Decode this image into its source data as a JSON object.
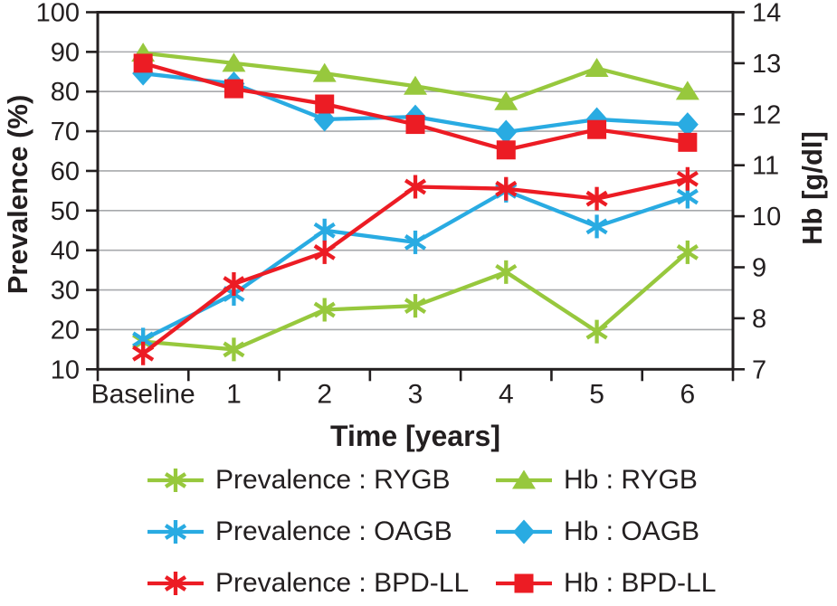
{
  "figure": {
    "background": "#ffffff",
    "text_color": "#231F20",
    "gridline_color": "#A7A9AC",
    "axis_color": "#231F20"
  },
  "chart_data": {
    "type": "line",
    "title": "",
    "x_axis": {
      "label": "Time [years]",
      "categories": [
        "Baseline",
        "1",
        "2",
        "3",
        "4",
        "5",
        "6"
      ]
    },
    "y_axis_left": {
      "label": "Prevalence (%)",
      "min": 10,
      "max": 100,
      "tick_step": 10,
      "ticks": [
        "100",
        "90",
        "80",
        "70",
        "60",
        "50",
        "40",
        "30",
        "20",
        "10"
      ]
    },
    "y_axis_right": {
      "label": "Hb [g/dl]",
      "min": 7,
      "max": 14,
      "tick_step": 1,
      "ticks": [
        "14",
        "13",
        "12",
        "11",
        "10",
        "9",
        "8",
        "7"
      ]
    },
    "grid": {
      "horizontal": true,
      "at_left_values": [
        20,
        30,
        40,
        50,
        60,
        70,
        80,
        90
      ]
    },
    "legend_position": "bottom",
    "series": [
      {
        "name": "Hb : RYGB",
        "axis": "right",
        "color": "#97C83D",
        "marker": "triangle",
        "values": [
          13.2,
          13.0,
          12.8,
          12.55,
          12.25,
          12.9,
          12.45
        ]
      },
      {
        "name": "Hb : OAGB",
        "axis": "right",
        "color": "#29ABE2",
        "marker": "diamond",
        "values": [
          12.8,
          12.6,
          11.9,
          11.95,
          11.65,
          11.9,
          11.8
        ]
      },
      {
        "name": "Hb : BPD-LL",
        "axis": "right",
        "color": "#EC1C24",
        "marker": "square",
        "values": [
          13.0,
          12.5,
          12.2,
          11.8,
          11.3,
          11.7,
          11.45
        ]
      },
      {
        "name": "Prevalence : RYGB",
        "axis": "left",
        "color": "#97C83D",
        "marker": "asterisk",
        "values": [
          17,
          15,
          25,
          26,
          34.5,
          19.5,
          39.5
        ]
      },
      {
        "name": "Prevalence : OAGB",
        "axis": "left",
        "color": "#29ABE2",
        "marker": "asterisk",
        "values": [
          17.5,
          29,
          45,
          42,
          55,
          46,
          53.5
        ]
      },
      {
        "name": "Prevalence : BPD-LL",
        "axis": "left",
        "color": "#EC1C24",
        "marker": "asterisk",
        "values": [
          14,
          31.5,
          39.5,
          56,
          55.5,
          53,
          58
        ]
      }
    ]
  },
  "legend": {
    "items": [
      {
        "label": "Prevalence : RYGB",
        "marker": "asterisk",
        "color": "#97C83D"
      },
      {
        "label": "Hb : RYGB",
        "marker": "triangle",
        "color": "#97C83D"
      },
      {
        "label": "Prevalence : OAGB",
        "marker": "asterisk",
        "color": "#29ABE2"
      },
      {
        "label": "Hb : OAGB",
        "marker": "diamond",
        "color": "#29ABE2"
      },
      {
        "label": "Prevalence : BPD-LL",
        "marker": "asterisk",
        "color": "#EC1C24"
      },
      {
        "label": "Hb : BPD-LL",
        "marker": "square",
        "color": "#EC1C24"
      }
    ]
  }
}
